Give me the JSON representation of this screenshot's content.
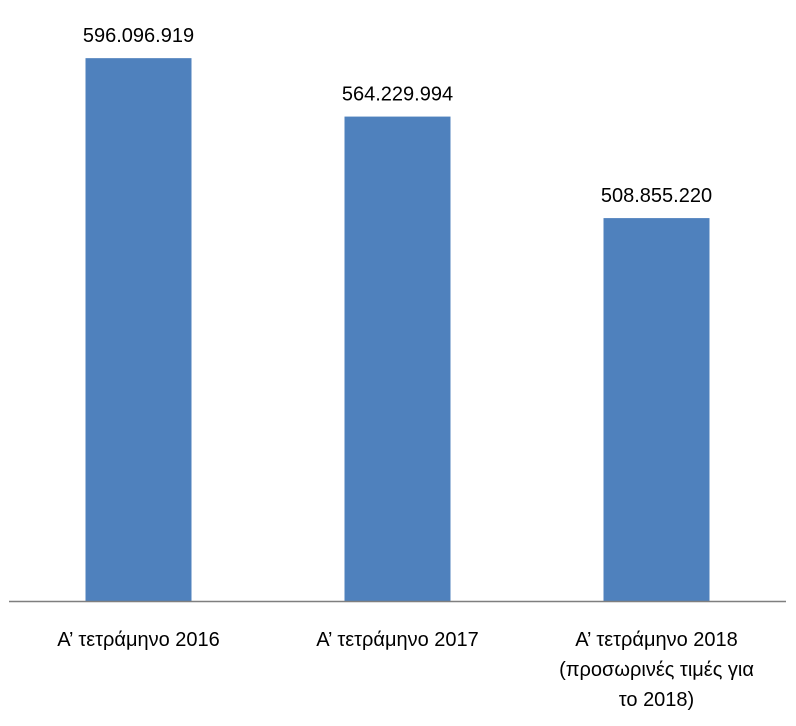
{
  "chart_data": {
    "type": "bar",
    "title": "",
    "xlabel": "",
    "ylabel": "",
    "categories": [
      [
        "Α’ τετράμηνο 2016"
      ],
      [
        "Α’ τετράμηνο 2017"
      ],
      [
        "Α’ τετράμηνο 2018",
        "(προσωρινές τιμές για",
        "το 2018)"
      ]
    ],
    "values": [
      596096919,
      564229994,
      508855220
    ],
    "value_labels": [
      "596.096.919",
      "564.229.994",
      "508.855.220"
    ],
    "ylim": [
      300000000,
      600000000
    ],
    "grid": false,
    "legend": "none",
    "bar_color": "#4f81bd",
    "axis_color": "#7f7f7f"
  }
}
